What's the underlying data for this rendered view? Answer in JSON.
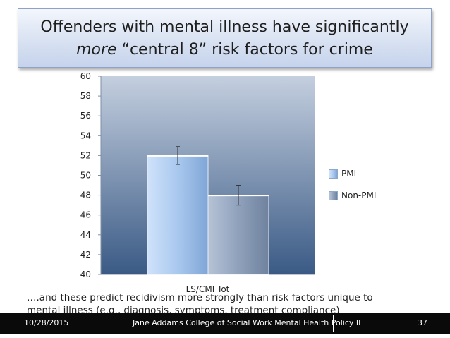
{
  "slide": {
    "title_line1": "Offenders with mental illness have significantly",
    "title_more": "more",
    "title_rest": " “central 8” risk factors for crime",
    "note": "….and these predict recidivism more strongly than risk factors unique to mental illness (e.g., diagnosis, symptoms, treatment compliance)"
  },
  "footer": {
    "date": "10/28/2015",
    "center": "Jane Addams College of Social Work Mental Health Policy II",
    "page": "37"
  },
  "chart_data": {
    "type": "bar",
    "categories": [
      "LS/CMI Tot"
    ],
    "series": [
      {
        "name": "PMI",
        "values": [
          52
        ],
        "error": [
          0.9
        ]
      },
      {
        "name": "Non-PMI",
        "values": [
          48
        ],
        "error": [
          1.0
        ]
      }
    ],
    "ylim": [
      40,
      60
    ],
    "yticks": [
      "40",
      "42",
      "44",
      "46",
      "48",
      "50",
      "52",
      "54",
      "56",
      "58",
      "60"
    ],
    "grid": false,
    "legend": "right",
    "colors": {
      "plot_top": "#c4cfdf",
      "plot_bottom": "#3a5a85",
      "pmi": "#a9c8ee",
      "non_pmi": "#8fa1bb"
    }
  }
}
